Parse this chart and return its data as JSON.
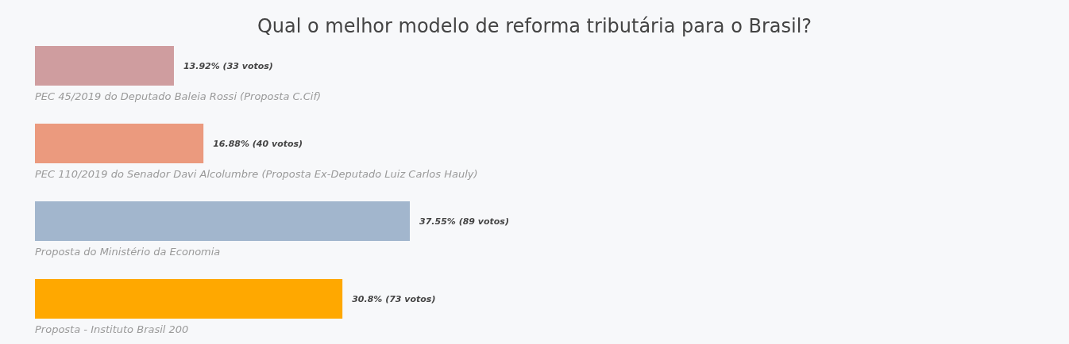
{
  "chart_data": {
    "type": "bar",
    "orientation": "horizontal",
    "title": "Qual o melhor modelo de reforma tributária para o Brasil?",
    "categories": [
      "PEC 45/2019 do Deputado Baleia Rossi (Proposta C.Cif)",
      "PEC 110/2019 do Senador Davi Alcolumbre (Proposta Ex-Deputado Luiz Carlos Hauly)",
      "Proposta do Ministério da Economia",
      "Proposta - Instituto Brasil 200"
    ],
    "values": [
      13.92,
      16.88,
      37.55,
      30.8
    ],
    "colors": [
      "#cf9d9f",
      "#eb9a7e",
      "#a2b6cd",
      "#ffa800"
    ],
    "value_labels": [
      "13.92% (33 votos)",
      "16.88% (40 votos)",
      "37.55% (89 votos)",
      "30.8% (73 votos)"
    ]
  }
}
